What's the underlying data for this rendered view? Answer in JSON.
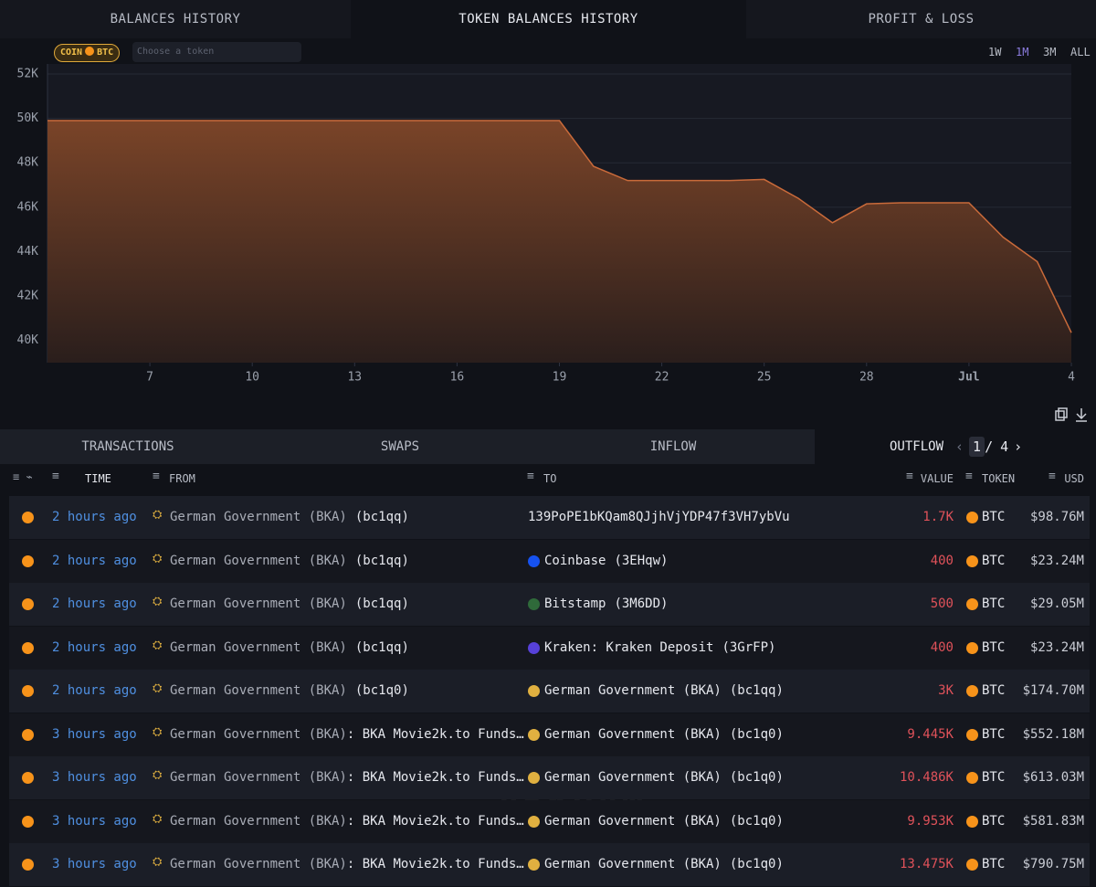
{
  "tabs": [
    "BALANCES HISTORY",
    "TOKEN BALANCES HISTORY",
    "PROFIT & LOSS"
  ],
  "token_filter": {
    "coin_label": "COIN",
    "token": "BTC",
    "placeholder": "Choose a token"
  },
  "ranges": [
    "1W",
    "1M",
    "3M",
    "ALL"
  ],
  "chart_data": {
    "type": "area",
    "color": "#c96a3a",
    "x": [
      4,
      19,
      20,
      21,
      24,
      25,
      26,
      27,
      28,
      29,
      31,
      32,
      33,
      34
    ],
    "values": [
      49900,
      49900,
      47840,
      47200,
      47200,
      47250,
      46400,
      45300,
      46150,
      46200,
      46200,
      44650,
      43550,
      40350
    ],
    "xlim": [
      4,
      34
    ],
    "xticks": [
      7,
      10,
      13,
      16,
      19,
      22,
      25,
      28,
      {
        "value": 31,
        "label": "Jul"
      },
      {
        "value": 34,
        "label": "4"
      }
    ],
    "ylim": [
      39000,
      52450
    ],
    "yticks": [
      {
        "value": 40000,
        "label": "40K"
      },
      {
        "value": 42000,
        "label": "42K"
      },
      {
        "value": 44000,
        "label": "44K"
      },
      {
        "value": 46000,
        "label": "46K"
      },
      {
        "value": 48000,
        "label": "48K"
      },
      {
        "value": 50000,
        "label": "50K"
      },
      {
        "value": 52000,
        "label": "52K"
      }
    ],
    "grid": true
  },
  "table_tabs": [
    "TRANSACTIONS",
    "SWAPS",
    "INFLOW",
    "OUTFLOW"
  ],
  "pagination": {
    "current": "1",
    "separator": "/",
    "total": "4"
  },
  "columns": [
    "TIME",
    "FROM",
    "TO",
    "VALUE",
    "TOKEN",
    "USD"
  ],
  "watermark": "ARKHAM",
  "rows": [
    {
      "time": "2 hours ago",
      "from_name": "German Government (BKA)",
      "from_tag": "(bc1qq)",
      "to_name": "139PoPE1bKQam8QJjhVjYDP47f3VH7ybVu",
      "value": "1.7K",
      "token": "BTC",
      "usd": "$98.76M"
    },
    {
      "time": "2 hours ago",
      "from_name": "German Government (BKA)",
      "from_tag": "(bc1qq)",
      "to_name": "Coinbase",
      "to_tag": "(3EHqw)",
      "value": "400",
      "token": "BTC",
      "usd": "$23.24M"
    },
    {
      "time": "2 hours ago",
      "from_name": "German Government (BKA)",
      "from_tag": "(bc1qq)",
      "to_name": "Bitstamp",
      "to_tag": "(3M6DD)",
      "value": "500",
      "token": "BTC",
      "usd": "$29.05M"
    },
    {
      "time": "2 hours ago",
      "from_name": "German Government (BKA)",
      "from_tag": "(bc1qq)",
      "to_name": "Kraken: Kraken Deposit",
      "to_tag": "(3GrFP)",
      "value": "400",
      "token": "BTC",
      "usd": "$23.24M"
    },
    {
      "time": "2 hours ago",
      "from_name": "German Government (BKA)",
      "from_tag": "(bc1q0)",
      "to_name": "German Government (BKA)",
      "to_tag": "(bc1qq)",
      "value": "3K",
      "token": "BTC",
      "usd": "$174.70M"
    },
    {
      "time": "3 hours ago",
      "from_name": "German Government (BKA)",
      "from_tag": ": BKA Movie2k.to Funds…",
      "to_name": "German Government (BKA)",
      "to_tag": "(bc1q0)",
      "value": "9.445K",
      "token": "BTC",
      "usd": "$552.18M"
    },
    {
      "time": "3 hours ago",
      "from_name": "German Government (BKA)",
      "from_tag": ": BKA Movie2k.to Funds…",
      "to_name": "German Government (BKA)",
      "to_tag": "(bc1q0)",
      "value": "10.486K",
      "token": "BTC",
      "usd": "$613.03M"
    },
    {
      "time": "3 hours ago",
      "from_name": "German Government (BKA)",
      "from_tag": ": BKA Movie2k.to Funds…",
      "to_name": "German Government (BKA)",
      "to_tag": "(bc1q0)",
      "value": "9.953K",
      "token": "BTC",
      "usd": "$581.83M"
    },
    {
      "time": "3 hours ago",
      "from_name": "German Government (BKA)",
      "from_tag": ": BKA Movie2k.to Funds…",
      "to_name": "German Government (BKA)",
      "to_tag": "(bc1q0)",
      "value": "13.475K",
      "token": "BTC",
      "usd": "$790.75M"
    }
  ]
}
